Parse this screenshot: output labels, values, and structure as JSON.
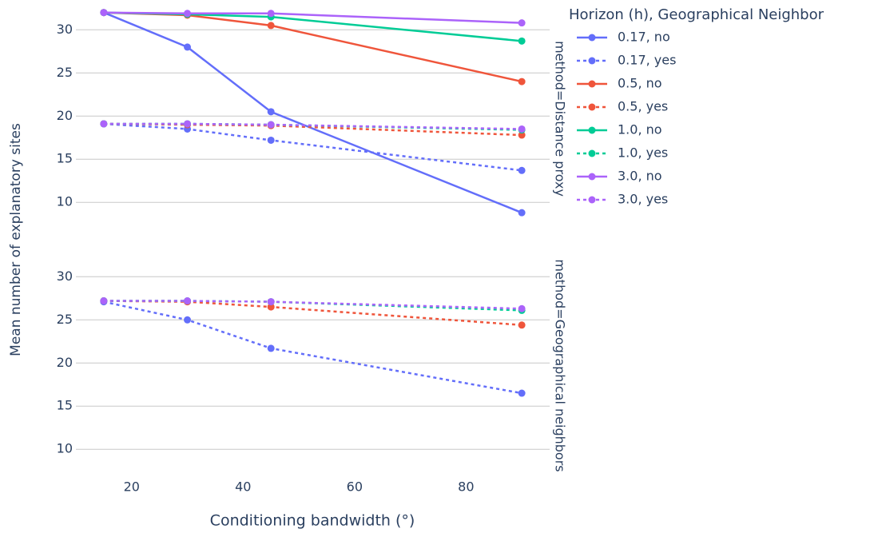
{
  "chart_data": {
    "type": "line",
    "x_label": "Conditioning bandwidth (°)",
    "y_label": "Mean number of explanatory sites",
    "legend_title": "Horizon (h), Geographical Neighbor",
    "facets": [
      "method=Distance proxy",
      "method=Geographical neighbors"
    ],
    "x": [
      15,
      30,
      45,
      90
    ],
    "xlim": [
      10,
      95
    ],
    "xticks": [
      20,
      40,
      60,
      80
    ],
    "ylim": [
      6.5,
      32.9
    ],
    "yticks": [
      10,
      15,
      20,
      25,
      30
    ],
    "grid": true,
    "series": [
      {
        "name": "0.17, no",
        "color": "#636efa",
        "dash": false,
        "values": [
          [
            32,
            28,
            20.5,
            8.8
          ],
          null
        ]
      },
      {
        "name": "0.17, yes",
        "color": "#636efa",
        "dash": true,
        "values": [
          [
            19.1,
            18.5,
            17.2,
            13.7
          ],
          [
            27.1,
            25,
            21.7,
            16.5
          ]
        ]
      },
      {
        "name": "0.5, no",
        "color": "#ef553b",
        "dash": false,
        "values": [
          [
            32,
            31.7,
            30.5,
            24
          ],
          null
        ]
      },
      {
        "name": "0.5, yes",
        "color": "#ef553b",
        "dash": true,
        "values": [
          [
            19.1,
            19.0,
            18.9,
            17.8
          ],
          [
            27.2,
            27.1,
            26.5,
            24.4
          ]
        ]
      },
      {
        "name": "1.0, no",
        "color": "#00cc96",
        "dash": false,
        "values": [
          [
            32,
            31.8,
            31.5,
            28.7
          ],
          null
        ]
      },
      {
        "name": "1.0, yes",
        "color": "#00cc96",
        "dash": true,
        "values": [
          [
            19.1,
            19.1,
            19.0,
            18.4
          ],
          [
            27.2,
            27.2,
            27.1,
            26.1
          ]
        ]
      },
      {
        "name": "3.0, no",
        "color": "#ab63fa",
        "dash": false,
        "values": [
          [
            32,
            31.9,
            31.9,
            30.8
          ],
          null
        ]
      },
      {
        "name": "3.0, yes",
        "color": "#ab63fa",
        "dash": true,
        "values": [
          [
            19.1,
            19.1,
            19.0,
            18.5
          ],
          [
            27.2,
            27.2,
            27.1,
            26.3
          ]
        ]
      }
    ]
  }
}
